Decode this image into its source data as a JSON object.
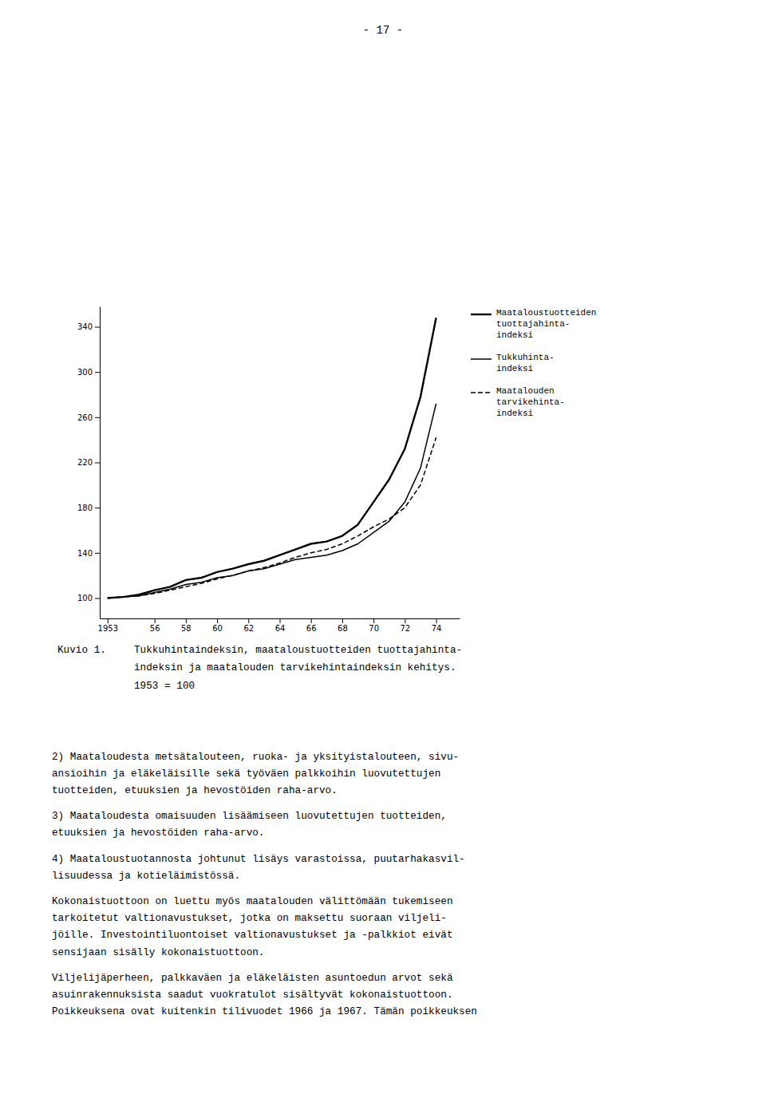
{
  "chart_data": {
    "type": "line",
    "x": [
      1953,
      1954,
      1955,
      1956,
      1957,
      1958,
      1959,
      1960,
      1961,
      1962,
      1963,
      1964,
      1965,
      1966,
      1967,
      1968,
      1969,
      1970,
      1971,
      1972,
      1973,
      1974
    ],
    "series": [
      {
        "name": "Maataloustuotteiden\ntuottajahinta-\nindeksi",
        "color": "#000000",
        "line_style": "solid",
        "values": [
          100,
          101,
          103,
          107,
          110,
          116,
          118,
          123,
          126,
          130,
          133,
          138,
          143,
          148,
          150,
          155,
          165,
          185,
          205,
          232,
          278,
          348
        ]
      },
      {
        "name": "Tukkuhinta-\nindeksi",
        "color": "#000000",
        "line_style": "solid",
        "values": [
          100,
          101,
          102,
          105,
          108,
          112,
          114,
          118,
          120,
          124,
          126,
          130,
          134,
          136,
          138,
          142,
          148,
          158,
          168,
          185,
          215,
          272
        ]
      },
      {
        "name": "Maatalouden\ntarvikehinta-\nindeksi",
        "color": "#000000",
        "line_style": "dashed",
        "values": [
          100,
          101,
          102,
          104,
          107,
          110,
          113,
          117,
          120,
          124,
          127,
          131,
          136,
          140,
          143,
          148,
          155,
          163,
          170,
          180,
          200,
          242
        ]
      }
    ],
    "xlim": [
      1952.5,
      1975.5
    ],
    "xticks": [
      1953,
      {
        "value": 1956,
        "label": "56"
      },
      {
        "value": 1958,
        "label": "58"
      },
      {
        "value": 1960,
        "label": "60"
      },
      {
        "value": 1962,
        "label": "62"
      },
      {
        "value": 1964,
        "label": "64"
      },
      {
        "value": 1966,
        "label": "66"
      },
      {
        "value": 1968,
        "label": "68"
      },
      {
        "value": 1970,
        "label": "70"
      },
      {
        "value": 1972,
        "label": "72"
      },
      {
        "value": 1974,
        "label": "74"
      }
    ],
    "ylim": [
      82,
      358
    ],
    "yticks": [
      100,
      140,
      180,
      220,
      260,
      300,
      340
    ],
    "grid": false,
    "legend": "right"
  },
  "page_number": "- 17 -",
  "caption_title": "Kuvio 1.",
  "caption_lines": [
    "Tukkuhintaindeksin, maataloustuotteiden tuottajahinta-",
    "indeksin ja maatalouden tarvikehintaindeksin kehitys.",
    "1953 = 100"
  ],
  "body_paragraphs": [
    "2) Maataloudesta metsätalouteen, ruoka- ja yksityistalouteen, sivu-\nansioihin ja eläkeläisille sekä työväen palkkoihin luovutettujen\ntuotteiden, etuuksien ja hevostöiden raha-arvo.",
    "3) Maataloudesta omaisuuden lisäämiseen luovutettujen tuotteiden,\netuuksien ja hevostöiden raha-arvo.",
    "4) Maataloustuotannosta johtunut lisäys varastoissa, puutarhakasvil-\nlisuudessa ja kotieläimistössä.",
    "Kokonaistuottoon on luettu myös maatalouden välittömään tukemiseen\ntarkoitetut valtionavustukset, jotka on maksettu suoraan viljeli-\njöille. Investointiluontoiset valtionavustukset ja -palkkiot eivät\nsensijaan sisälly kokonaistuottoon.",
    "Viljelijäperheen, palkkaväen ja eläkeläisten asuntoedun arvot sekä\nasuinrakennuksista saadut vuokratulot sisältyvät kokonaistuottoon.\nPoikkeuksena ovat kuitenkin tilivuodet 1966 ja 1967. Tämän poikkeuksen"
  ]
}
